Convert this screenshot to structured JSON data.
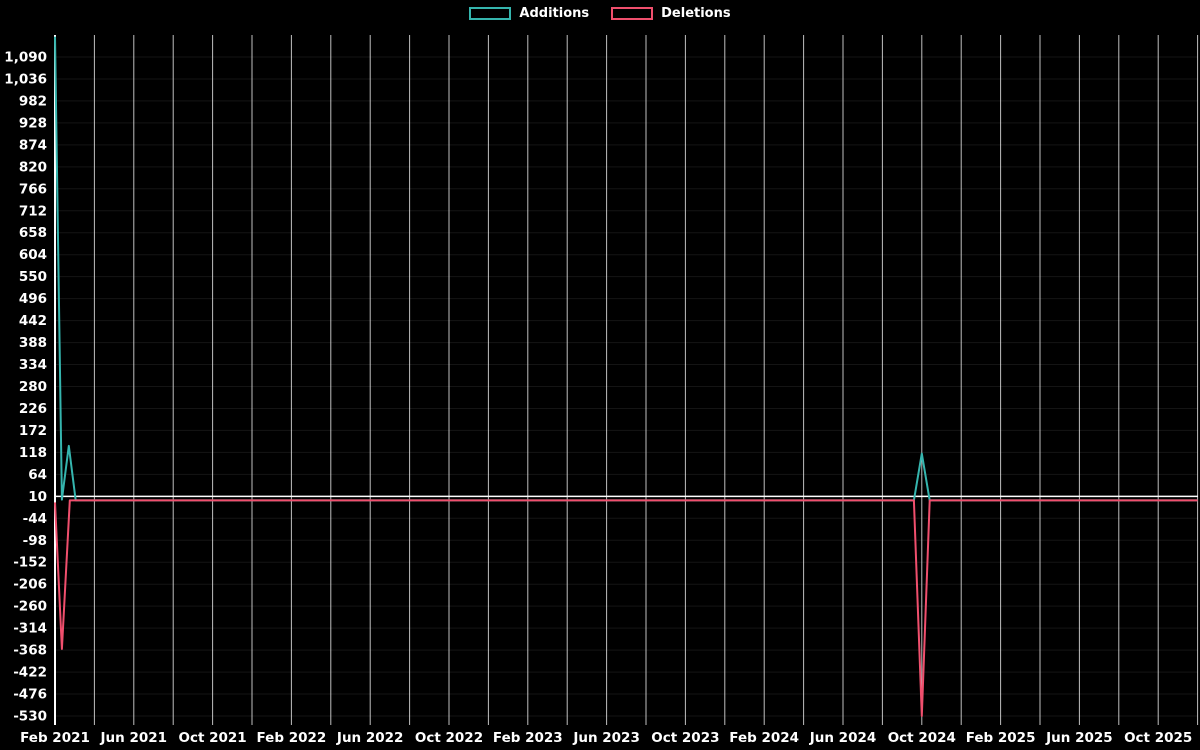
{
  "chart_data": {
    "type": "line",
    "title": "",
    "xlabel": "",
    "ylabel": "",
    "background_color": "#000000",
    "text_color": "#ffffff",
    "grid_color": "#ffffff",
    "legend": {
      "position": "top-center",
      "entries": [
        {
          "label": "Additions",
          "color": "#35b5ae"
        },
        {
          "label": "Deletions",
          "color": "#f04f6d"
        }
      ]
    },
    "axis": {
      "x_unit": "months_since_feb_2021",
      "x_tick_labels": [
        "Feb 2021",
        "Jun 2021",
        "Oct 2021",
        "Feb 2022",
        "Jun 2022",
        "Oct 2022",
        "Feb 2023",
        "Jun 2023",
        "Oct 2023",
        "Feb 2024",
        "Jun 2024",
        "Oct 2024",
        "Feb 2025",
        "Jun 2025",
        "Oct 2025"
      ],
      "x_tick_months": [
        0,
        4,
        8,
        12,
        16,
        20,
        24,
        28,
        32,
        36,
        40,
        44,
        48,
        52,
        56
      ],
      "y_ticks": [
        1090,
        1036,
        982,
        928,
        874,
        820,
        766,
        712,
        658,
        604,
        550,
        496,
        442,
        388,
        334,
        280,
        226,
        172,
        118,
        64,
        10,
        -44,
        -98,
        -152,
        -206,
        -260,
        -314,
        -368,
        -422,
        -476,
        -530
      ],
      "ylim": [
        -530,
        1090
      ],
      "zero_line_value": 10
    },
    "series": [
      {
        "name": "Additions",
        "color": "#35b5ae",
        "points": [
          [
            0,
            1140
          ],
          [
            0.35,
            2
          ],
          [
            0.7,
            134
          ],
          [
            1.05,
            0
          ],
          [
            43.6,
            0
          ],
          [
            44,
            115
          ],
          [
            44.4,
            0
          ],
          [
            58,
            0
          ]
        ]
      },
      {
        "name": "Deletions",
        "color": "#f04f6d",
        "points": [
          [
            0,
            -5
          ],
          [
            0.35,
            -365
          ],
          [
            0.75,
            0
          ],
          [
            43.6,
            0
          ],
          [
            44,
            -530
          ],
          [
            44.4,
            0
          ],
          [
            58,
            0
          ]
        ]
      }
    ]
  }
}
